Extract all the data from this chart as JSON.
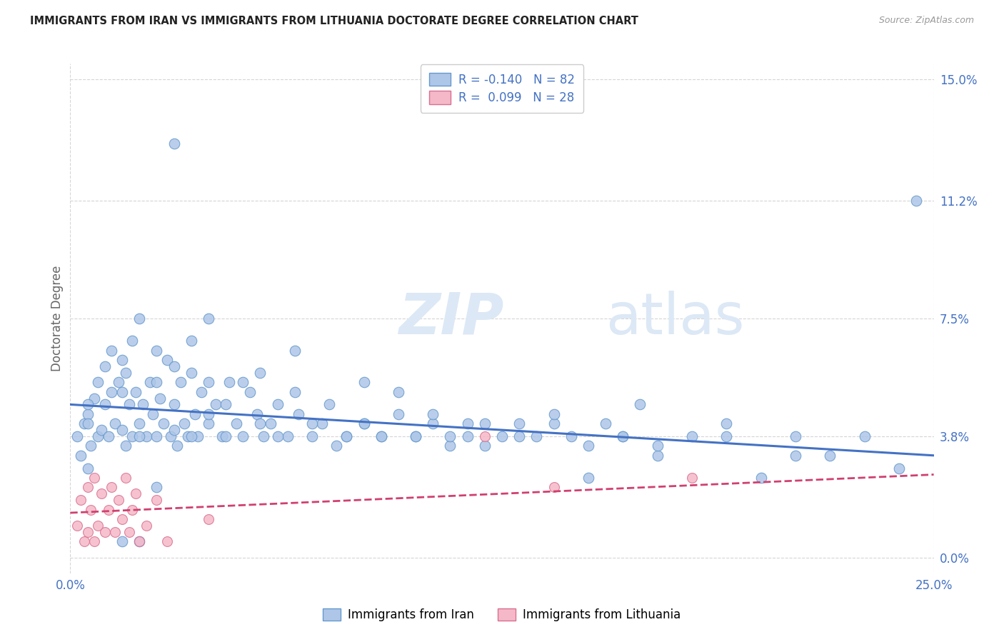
{
  "title": "IMMIGRANTS FROM IRAN VS IMMIGRANTS FROM LITHUANIA DOCTORATE DEGREE CORRELATION CHART",
  "source": "Source: ZipAtlas.com",
  "ylabel": "Doctorate Degree",
  "ytick_vals": [
    0.0,
    0.038,
    0.075,
    0.112,
    0.15
  ],
  "ytick_labels": [
    "0.0%",
    "3.8%",
    "7.5%",
    "11.2%",
    "15.0%"
  ],
  "xtick_vals": [
    0.0,
    0.25
  ],
  "xtick_labels": [
    "0.0%",
    "25.0%"
  ],
  "xlim": [
    0.0,
    0.25
  ],
  "ylim": [
    -0.005,
    0.155
  ],
  "legend_iran_R": "-0.140",
  "legend_iran_N": "82",
  "legend_lith_R": "0.099",
  "legend_lith_N": "28",
  "iran_color": "#aec6e8",
  "iran_edge_color": "#6699cc",
  "iran_line_color": "#4472c4",
  "lith_color": "#f5b8c8",
  "lith_edge_color": "#d97090",
  "lith_line_color": "#d04070",
  "watermark_color": "#dce8f5",
  "iran_scatter_x": [
    0.002,
    0.003,
    0.004,
    0.005,
    0.005,
    0.006,
    0.007,
    0.008,
    0.008,
    0.009,
    0.01,
    0.01,
    0.011,
    0.012,
    0.012,
    0.013,
    0.014,
    0.015,
    0.015,
    0.016,
    0.016,
    0.017,
    0.018,
    0.018,
    0.019,
    0.02,
    0.02,
    0.021,
    0.022,
    0.023,
    0.024,
    0.025,
    0.025,
    0.026,
    0.027,
    0.028,
    0.029,
    0.03,
    0.031,
    0.032,
    0.033,
    0.034,
    0.035,
    0.036,
    0.037,
    0.038,
    0.04,
    0.042,
    0.044,
    0.046,
    0.048,
    0.05,
    0.052,
    0.054,
    0.056,
    0.058,
    0.06,
    0.063,
    0.066,
    0.07,
    0.073,
    0.077,
    0.08,
    0.085,
    0.09,
    0.095,
    0.1,
    0.105,
    0.11,
    0.115,
    0.12,
    0.13,
    0.14,
    0.15,
    0.16,
    0.17,
    0.19,
    0.21,
    0.03,
    0.025,
    0.02,
    0.015
  ],
  "iran_scatter_y": [
    0.038,
    0.032,
    0.042,
    0.028,
    0.045,
    0.035,
    0.05,
    0.038,
    0.055,
    0.04,
    0.048,
    0.06,
    0.038,
    0.052,
    0.065,
    0.042,
    0.055,
    0.04,
    0.062,
    0.035,
    0.058,
    0.048,
    0.038,
    0.068,
    0.052,
    0.042,
    0.075,
    0.048,
    0.038,
    0.055,
    0.045,
    0.038,
    0.065,
    0.05,
    0.042,
    0.062,
    0.038,
    0.048,
    0.035,
    0.055,
    0.042,
    0.038,
    0.058,
    0.045,
    0.038,
    0.052,
    0.042,
    0.048,
    0.038,
    0.055,
    0.042,
    0.038,
    0.052,
    0.045,
    0.038,
    0.042,
    0.048,
    0.038,
    0.045,
    0.038,
    0.042,
    0.035,
    0.038,
    0.042,
    0.038,
    0.045,
    0.038,
    0.042,
    0.035,
    0.038,
    0.042,
    0.038,
    0.042,
    0.035,
    0.038,
    0.032,
    0.038,
    0.032,
    0.13,
    0.022,
    0.005,
    0.005
  ],
  "iran_scatter_x2": [
    0.005,
    0.005,
    0.015,
    0.02,
    0.025,
    0.03,
    0.03,
    0.035,
    0.035,
    0.04,
    0.04,
    0.04,
    0.045,
    0.045,
    0.05,
    0.055,
    0.055,
    0.06,
    0.065,
    0.065,
    0.07,
    0.075,
    0.08,
    0.085,
    0.085,
    0.09,
    0.095,
    0.1,
    0.105,
    0.11,
    0.115,
    0.12,
    0.125,
    0.13,
    0.135,
    0.14,
    0.145,
    0.15,
    0.155,
    0.16,
    0.165,
    0.17,
    0.18,
    0.19,
    0.2,
    0.21,
    0.22,
    0.23,
    0.24,
    0.245
  ],
  "iran_scatter_y2": [
    0.042,
    0.048,
    0.052,
    0.038,
    0.055,
    0.04,
    0.06,
    0.038,
    0.068,
    0.045,
    0.055,
    0.075,
    0.048,
    0.038,
    0.055,
    0.042,
    0.058,
    0.038,
    0.052,
    0.065,
    0.042,
    0.048,
    0.038,
    0.055,
    0.042,
    0.038,
    0.052,
    0.038,
    0.045,
    0.038,
    0.042,
    0.035,
    0.038,
    0.042,
    0.038,
    0.045,
    0.038,
    0.025,
    0.042,
    0.038,
    0.048,
    0.035,
    0.038,
    0.042,
    0.025,
    0.038,
    0.032,
    0.038,
    0.028,
    0.112
  ],
  "lith_scatter_x": [
    0.002,
    0.003,
    0.004,
    0.005,
    0.005,
    0.006,
    0.007,
    0.007,
    0.008,
    0.009,
    0.01,
    0.011,
    0.012,
    0.013,
    0.014,
    0.015,
    0.016,
    0.017,
    0.018,
    0.019,
    0.02,
    0.022,
    0.025,
    0.028,
    0.04,
    0.12,
    0.14,
    0.18
  ],
  "lith_scatter_y": [
    0.01,
    0.018,
    0.005,
    0.022,
    0.008,
    0.015,
    0.025,
    0.005,
    0.01,
    0.02,
    0.008,
    0.015,
    0.022,
    0.008,
    0.018,
    0.012,
    0.025,
    0.008,
    0.015,
    0.02,
    0.005,
    0.01,
    0.018,
    0.005,
    0.012,
    0.038,
    0.022,
    0.025
  ],
  "iran_trend_x": [
    0.0,
    0.25
  ],
  "iran_trend_y": [
    0.048,
    0.032
  ],
  "lith_trend_x": [
    0.0,
    0.25
  ],
  "lith_trend_y": [
    0.014,
    0.026
  ],
  "grid_color": "#d5d5d5",
  "title_color": "#222222",
  "axis_label_color": "#4472c4",
  "ylabel_color": "#666666"
}
